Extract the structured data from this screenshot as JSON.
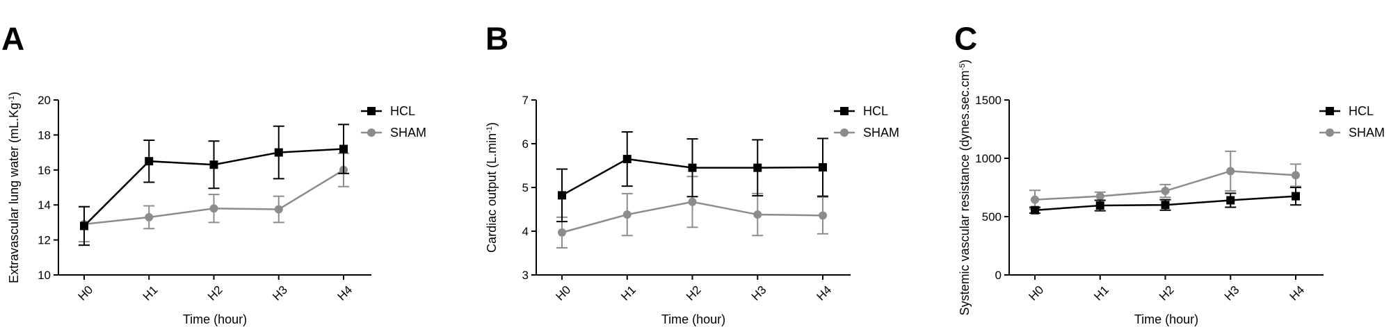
{
  "chart_data": [
    {
      "panel": "A",
      "type": "line",
      "title": "",
      "xlabel": "Time (hour)",
      "ylabel": "Extravascular lung water (mL.Kg",
      "ylabel_sup": "-1",
      "ylabel_end": ")",
      "categories": [
        "H0",
        "H1",
        "H2",
        "H3",
        "H4"
      ],
      "ylim": [
        10,
        20
      ],
      "yticks": [
        10,
        12,
        14,
        16,
        18,
        20
      ],
      "legend": "top-right",
      "series": [
        {
          "name": "HCL",
          "color": "#000000",
          "marker": "square",
          "values": [
            12.8,
            16.5,
            16.3,
            17.0,
            17.2
          ],
          "errors": [
            1.1,
            1.2,
            1.35,
            1.5,
            1.4
          ]
        },
        {
          "name": "SHAM",
          "color": "#8c8c8c",
          "marker": "circle",
          "values": [
            12.9,
            13.3,
            13.8,
            13.75,
            16.0
          ],
          "errors": [
            1.0,
            0.65,
            0.8,
            0.75,
            0.95
          ]
        }
      ]
    },
    {
      "panel": "B",
      "type": "line",
      "title": "",
      "xlabel": "Time (hour)",
      "ylabel": "Cardiac output (L.min",
      "ylabel_sup": "-1",
      "ylabel_end": ")",
      "categories": [
        "H0",
        "H1",
        "H2",
        "H3",
        "H4"
      ],
      "ylim": [
        3,
        7
      ],
      "yticks": [
        3,
        4,
        5,
        6,
        7
      ],
      "legend": "top-right",
      "series": [
        {
          "name": "HCL",
          "color": "#000000",
          "marker": "square",
          "values": [
            4.82,
            5.65,
            5.45,
            5.45,
            5.46
          ],
          "errors": [
            0.6,
            0.62,
            0.66,
            0.64,
            0.66
          ]
        },
        {
          "name": "SHAM",
          "color": "#8c8c8c",
          "marker": "circle",
          "values": [
            3.97,
            4.38,
            4.67,
            4.38,
            4.36
          ],
          "errors": [
            0.35,
            0.48,
            0.58,
            0.48,
            0.42
          ]
        }
      ]
    },
    {
      "panel": "C",
      "type": "line",
      "title": "",
      "xlabel": "Time (hour)",
      "ylabel": "Systemic vascular resistance (dynes.sec.cm",
      "ylabel_sup": "-5",
      "ylabel_end": ")",
      "categories": [
        "H0",
        "H1",
        "H2",
        "H3",
        "H4"
      ],
      "ylim": [
        0,
        1500
      ],
      "yticks": [
        0,
        500,
        1000,
        1500
      ],
      "legend": "top-right",
      "series": [
        {
          "name": "HCL",
          "color": "#000000",
          "marker": "square",
          "values": [
            555,
            595,
            600,
            640,
            675
          ],
          "errors": [
            25,
            45,
            45,
            60,
            75
          ]
        },
        {
          "name": "SHAM",
          "color": "#8c8c8c",
          "marker": "circle",
          "values": [
            645,
            675,
            720,
            890,
            855
          ],
          "errors": [
            80,
            35,
            55,
            170,
            95
          ]
        }
      ]
    }
  ]
}
